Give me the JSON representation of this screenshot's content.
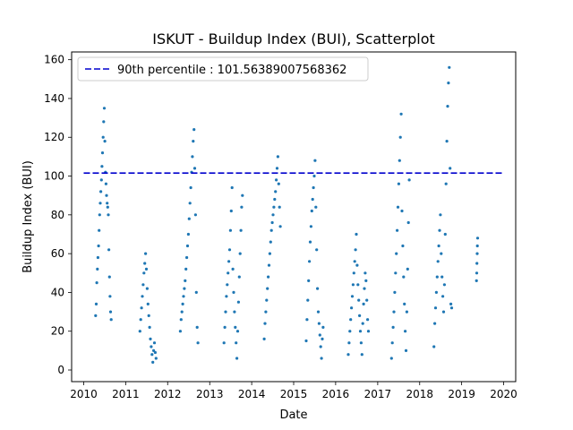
{
  "chart_data": {
    "type": "scatter",
    "title": "ISKUT - Buildup Index (BUI), Scatterplot",
    "xlabel": "Date",
    "ylabel": "Buildup Index (BUI)",
    "xlim": [
      "2009-09-18",
      "2020-04-15"
    ],
    "ylim": [
      -6,
      164
    ],
    "xticks": [
      "2010",
      "2011",
      "2012",
      "2013",
      "2014",
      "2015",
      "2016",
      "2017",
      "2018",
      "2019",
      "2020"
    ],
    "yticks": [
      0,
      20,
      40,
      60,
      80,
      100,
      120,
      140,
      160
    ],
    "grid": false,
    "legend_position": "top-left",
    "reference_line": {
      "label": "90th percentile : 101.56389007568362",
      "y": 101.56389007568362,
      "x_range": [
        "2010-01-01",
        "2020-01-01"
      ],
      "style": "dashed",
      "color": "#0000cd"
    },
    "series": [
      {
        "marker_color": "#1f77b4",
        "points": [
          [
            "2010-04-15",
            28
          ],
          [
            "2010-04-20",
            34
          ],
          [
            "2010-04-25",
            45
          ],
          [
            "2010-04-30",
            52
          ],
          [
            "2010-05-05",
            58
          ],
          [
            "2010-05-10",
            64
          ],
          [
            "2010-05-15",
            72
          ],
          [
            "2010-05-20",
            80
          ],
          [
            "2010-05-25",
            86
          ],
          [
            "2010-05-30",
            92
          ],
          [
            "2010-06-04",
            98
          ],
          [
            "2010-06-09",
            105
          ],
          [
            "2010-06-14",
            112
          ],
          [
            "2010-06-19",
            120
          ],
          [
            "2010-06-24",
            128
          ],
          [
            "2010-06-29",
            135
          ],
          [
            "2010-07-04",
            118
          ],
          [
            "2010-07-09",
            102
          ],
          [
            "2010-07-14",
            96
          ],
          [
            "2010-07-19",
            90
          ],
          [
            "2010-07-24",
            86
          ],
          [
            "2010-07-29",
            84
          ],
          [
            "2010-08-03",
            80
          ],
          [
            "2010-08-08",
            62
          ],
          [
            "2010-08-13",
            48
          ],
          [
            "2010-08-18",
            38
          ],
          [
            "2010-08-23",
            30
          ],
          [
            "2010-08-28",
            26
          ],
          [
            "2011-05-05",
            20
          ],
          [
            "2011-05-12",
            26
          ],
          [
            "2011-05-19",
            32
          ],
          [
            "2011-05-26",
            38
          ],
          [
            "2011-06-02",
            44
          ],
          [
            "2011-06-09",
            50
          ],
          [
            "2011-06-16",
            55
          ],
          [
            "2011-06-23",
            60
          ],
          [
            "2011-06-30",
            52
          ],
          [
            "2011-07-07",
            42
          ],
          [
            "2011-07-14",
            34
          ],
          [
            "2011-07-21",
            28
          ],
          [
            "2011-07-28",
            22
          ],
          [
            "2011-08-04",
            16
          ],
          [
            "2011-08-11",
            12
          ],
          [
            "2011-08-18",
            8
          ],
          [
            "2011-08-25",
            4
          ],
          [
            "2011-09-01",
            10
          ],
          [
            "2011-09-08",
            14
          ],
          [
            "2011-09-15",
            9
          ],
          [
            "2011-09-22",
            6
          ],
          [
            "2012-04-20",
            20
          ],
          [
            "2012-04-27",
            26
          ],
          [
            "2012-05-04",
            30
          ],
          [
            "2012-05-11",
            34
          ],
          [
            "2012-05-18",
            38
          ],
          [
            "2012-05-25",
            42
          ],
          [
            "2012-06-01",
            46
          ],
          [
            "2012-06-08",
            52
          ],
          [
            "2012-06-15",
            58
          ],
          [
            "2012-06-22",
            64
          ],
          [
            "2012-06-29",
            70
          ],
          [
            "2012-07-06",
            78
          ],
          [
            "2012-07-13",
            86
          ],
          [
            "2012-07-20",
            94
          ],
          [
            "2012-07-27",
            102
          ],
          [
            "2012-08-03",
            110
          ],
          [
            "2012-08-10",
            118
          ],
          [
            "2012-08-17",
            124
          ],
          [
            "2012-08-24",
            104
          ],
          [
            "2012-08-31",
            80
          ],
          [
            "2012-09-07",
            40
          ],
          [
            "2012-09-14",
            22
          ],
          [
            "2012-09-21",
            14
          ],
          [
            "2013-05-05",
            14
          ],
          [
            "2013-05-12",
            22
          ],
          [
            "2013-05-19",
            30
          ],
          [
            "2013-05-26",
            38
          ],
          [
            "2013-06-02",
            44
          ],
          [
            "2013-06-09",
            50
          ],
          [
            "2013-06-16",
            56
          ],
          [
            "2013-06-23",
            62
          ],
          [
            "2013-06-30",
            72
          ],
          [
            "2013-07-07",
            82
          ],
          [
            "2013-07-14",
            94
          ],
          [
            "2013-07-21",
            52
          ],
          [
            "2013-07-28",
            40
          ],
          [
            "2013-08-04",
            30
          ],
          [
            "2013-08-11",
            22
          ],
          [
            "2013-08-18",
            14
          ],
          [
            "2013-08-25",
            6
          ],
          [
            "2013-09-01",
            20
          ],
          [
            "2013-09-08",
            35
          ],
          [
            "2013-09-15",
            48
          ],
          [
            "2013-09-22",
            60
          ],
          [
            "2013-09-29",
            72
          ],
          [
            "2013-10-06",
            84
          ],
          [
            "2013-10-13",
            90
          ],
          [
            "2014-04-20",
            16
          ],
          [
            "2014-04-27",
            24
          ],
          [
            "2014-05-04",
            30
          ],
          [
            "2014-05-11",
            36
          ],
          [
            "2014-05-18",
            42
          ],
          [
            "2014-05-25",
            48
          ],
          [
            "2014-06-01",
            54
          ],
          [
            "2014-06-08",
            60
          ],
          [
            "2014-06-15",
            66
          ],
          [
            "2014-06-22",
            72
          ],
          [
            "2014-06-29",
            76
          ],
          [
            "2014-07-06",
            80
          ],
          [
            "2014-07-13",
            84
          ],
          [
            "2014-07-20",
            88
          ],
          [
            "2014-07-27",
            92
          ],
          [
            "2014-08-03",
            98
          ],
          [
            "2014-08-10",
            104
          ],
          [
            "2014-08-17",
            110
          ],
          [
            "2014-08-24",
            96
          ],
          [
            "2014-08-31",
            84
          ],
          [
            "2014-09-07",
            74
          ],
          [
            "2015-04-20",
            15
          ],
          [
            "2015-04-27",
            26
          ],
          [
            "2015-05-04",
            36
          ],
          [
            "2015-05-11",
            46
          ],
          [
            "2015-05-18",
            56
          ],
          [
            "2015-05-25",
            66
          ],
          [
            "2015-06-01",
            74
          ],
          [
            "2015-06-08",
            82
          ],
          [
            "2015-06-15",
            88
          ],
          [
            "2015-06-22",
            94
          ],
          [
            "2015-06-29",
            100
          ],
          [
            "2015-07-06",
            108
          ],
          [
            "2015-07-13",
            84
          ],
          [
            "2015-07-20",
            62
          ],
          [
            "2015-07-27",
            42
          ],
          [
            "2015-08-03",
            30
          ],
          [
            "2015-08-10",
            24
          ],
          [
            "2015-08-17",
            18
          ],
          [
            "2015-08-24",
            12
          ],
          [
            "2015-08-31",
            6
          ],
          [
            "2015-09-07",
            16
          ],
          [
            "2015-09-14",
            22
          ],
          [
            "2016-04-20",
            8
          ],
          [
            "2016-04-27",
            14
          ],
          [
            "2016-05-04",
            20
          ],
          [
            "2016-05-11",
            26
          ],
          [
            "2016-05-18",
            32
          ],
          [
            "2016-05-25",
            38
          ],
          [
            "2016-06-01",
            44
          ],
          [
            "2016-06-08",
            50
          ],
          [
            "2016-06-15",
            56
          ],
          [
            "2016-06-22",
            62
          ],
          [
            "2016-06-29",
            70
          ],
          [
            "2016-07-06",
            54
          ],
          [
            "2016-07-13",
            44
          ],
          [
            "2016-07-20",
            36
          ],
          [
            "2016-07-27",
            28
          ],
          [
            "2016-08-03",
            20
          ],
          [
            "2016-08-10",
            14
          ],
          [
            "2016-08-17",
            8
          ],
          [
            "2016-08-24",
            24
          ],
          [
            "2016-08-31",
            34
          ],
          [
            "2016-09-07",
            42
          ],
          [
            "2016-09-14",
            50
          ],
          [
            "2016-09-21",
            46
          ],
          [
            "2016-09-28",
            36
          ],
          [
            "2016-10-05",
            26
          ],
          [
            "2016-10-12",
            20
          ],
          [
            "2017-05-01",
            6
          ],
          [
            "2017-05-08",
            14
          ],
          [
            "2017-05-15",
            22
          ],
          [
            "2017-05-22",
            30
          ],
          [
            "2017-05-29",
            40
          ],
          [
            "2017-06-05",
            50
          ],
          [
            "2017-06-12",
            60
          ],
          [
            "2017-06-19",
            72
          ],
          [
            "2017-06-26",
            84
          ],
          [
            "2017-07-03",
            96
          ],
          [
            "2017-07-10",
            108
          ],
          [
            "2017-07-17",
            120
          ],
          [
            "2017-07-24",
            132
          ],
          [
            "2017-07-31",
            82
          ],
          [
            "2017-08-07",
            64
          ],
          [
            "2017-08-14",
            48
          ],
          [
            "2017-08-21",
            34
          ],
          [
            "2017-08-28",
            20
          ],
          [
            "2017-09-04",
            10
          ],
          [
            "2017-09-11",
            30
          ],
          [
            "2017-09-18",
            52
          ],
          [
            "2017-09-25",
            76
          ],
          [
            "2017-10-02",
            98
          ],
          [
            "2018-05-05",
            12
          ],
          [
            "2018-05-12",
            24
          ],
          [
            "2018-05-19",
            32
          ],
          [
            "2018-05-26",
            40
          ],
          [
            "2018-06-02",
            48
          ],
          [
            "2018-06-09",
            56
          ],
          [
            "2018-06-16",
            64
          ],
          [
            "2018-06-23",
            72
          ],
          [
            "2018-06-30",
            80
          ],
          [
            "2018-07-07",
            60
          ],
          [
            "2018-07-14",
            48
          ],
          [
            "2018-07-21",
            38
          ],
          [
            "2018-07-28",
            30
          ],
          [
            "2018-08-04",
            44
          ],
          [
            "2018-08-11",
            70
          ],
          [
            "2018-08-18",
            96
          ],
          [
            "2018-08-25",
            118
          ],
          [
            "2018-09-01",
            136
          ],
          [
            "2018-09-08",
            148
          ],
          [
            "2018-09-15",
            156
          ],
          [
            "2018-09-22",
            104
          ],
          [
            "2018-09-29",
            34
          ],
          [
            "2018-10-06",
            32
          ],
          [
            "2019-05-10",
            46
          ],
          [
            "2019-05-12",
            50
          ],
          [
            "2019-05-14",
            55
          ],
          [
            "2019-05-16",
            60
          ],
          [
            "2019-05-18",
            64
          ],
          [
            "2019-05-20",
            68
          ]
        ]
      }
    ]
  }
}
